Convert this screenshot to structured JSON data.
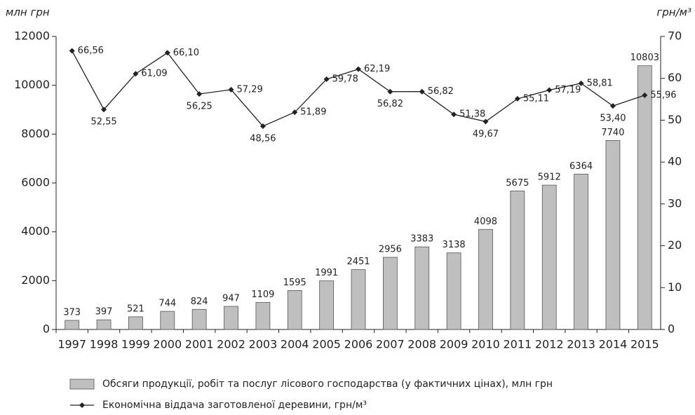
{
  "chart_data": {
    "type": "bar",
    "y_label": "млн грн",
    "y2_label": "грн/м³",
    "categories": [
      "1997",
      "1998",
      "1999",
      "2000",
      "2001",
      "2002",
      "2003",
      "2004",
      "2005",
      "2006",
      "2007",
      "2008",
      "2009",
      "2010",
      "2011",
      "2012",
      "2013",
      "2014",
      "2015"
    ],
    "series": [
      {
        "name": "Обсяги продукції, робіт та послуг лісового господарства (у фактичних цінах), млн грн",
        "type": "bar",
        "color": "#bfbfbf",
        "values": [
          373,
          397,
          521,
          744,
          824,
          947,
          1109,
          1595,
          1991,
          2451,
          2956,
          3383,
          3138,
          4098,
          5675,
          5912,
          6364,
          7740,
          10803
        ]
      },
      {
        "name": "Економічна віддача заготовленої деревини, грн/м³",
        "type": "line",
        "axis": "y2",
        "color": "#222222",
        "values": [
          66.56,
          52.55,
          61.09,
          66.1,
          56.25,
          57.29,
          48.56,
          51.89,
          59.78,
          62.19,
          56.82,
          56.82,
          51.38,
          49.67,
          55.11,
          57.19,
          58.81,
          53.4,
          55.96
        ],
        "value_labels": [
          "66,56",
          "52,55",
          "61,09",
          "66,10",
          "56,25",
          "57,29",
          "48,56",
          "51,89",
          "59,78",
          "62,19",
          "56,82",
          "56,82",
          "51,38",
          "49,67",
          "55,11",
          "57,19",
          "58,81",
          "53,40",
          "55,96"
        ]
      }
    ],
    "ylim": [
      0,
      12000
    ],
    "yticks": [
      0,
      2000,
      4000,
      6000,
      8000,
      10000,
      12000
    ],
    "y2lim": [
      0,
      70
    ],
    "y2ticks": [
      0,
      10,
      20,
      30,
      40,
      50,
      60,
      70
    ]
  }
}
